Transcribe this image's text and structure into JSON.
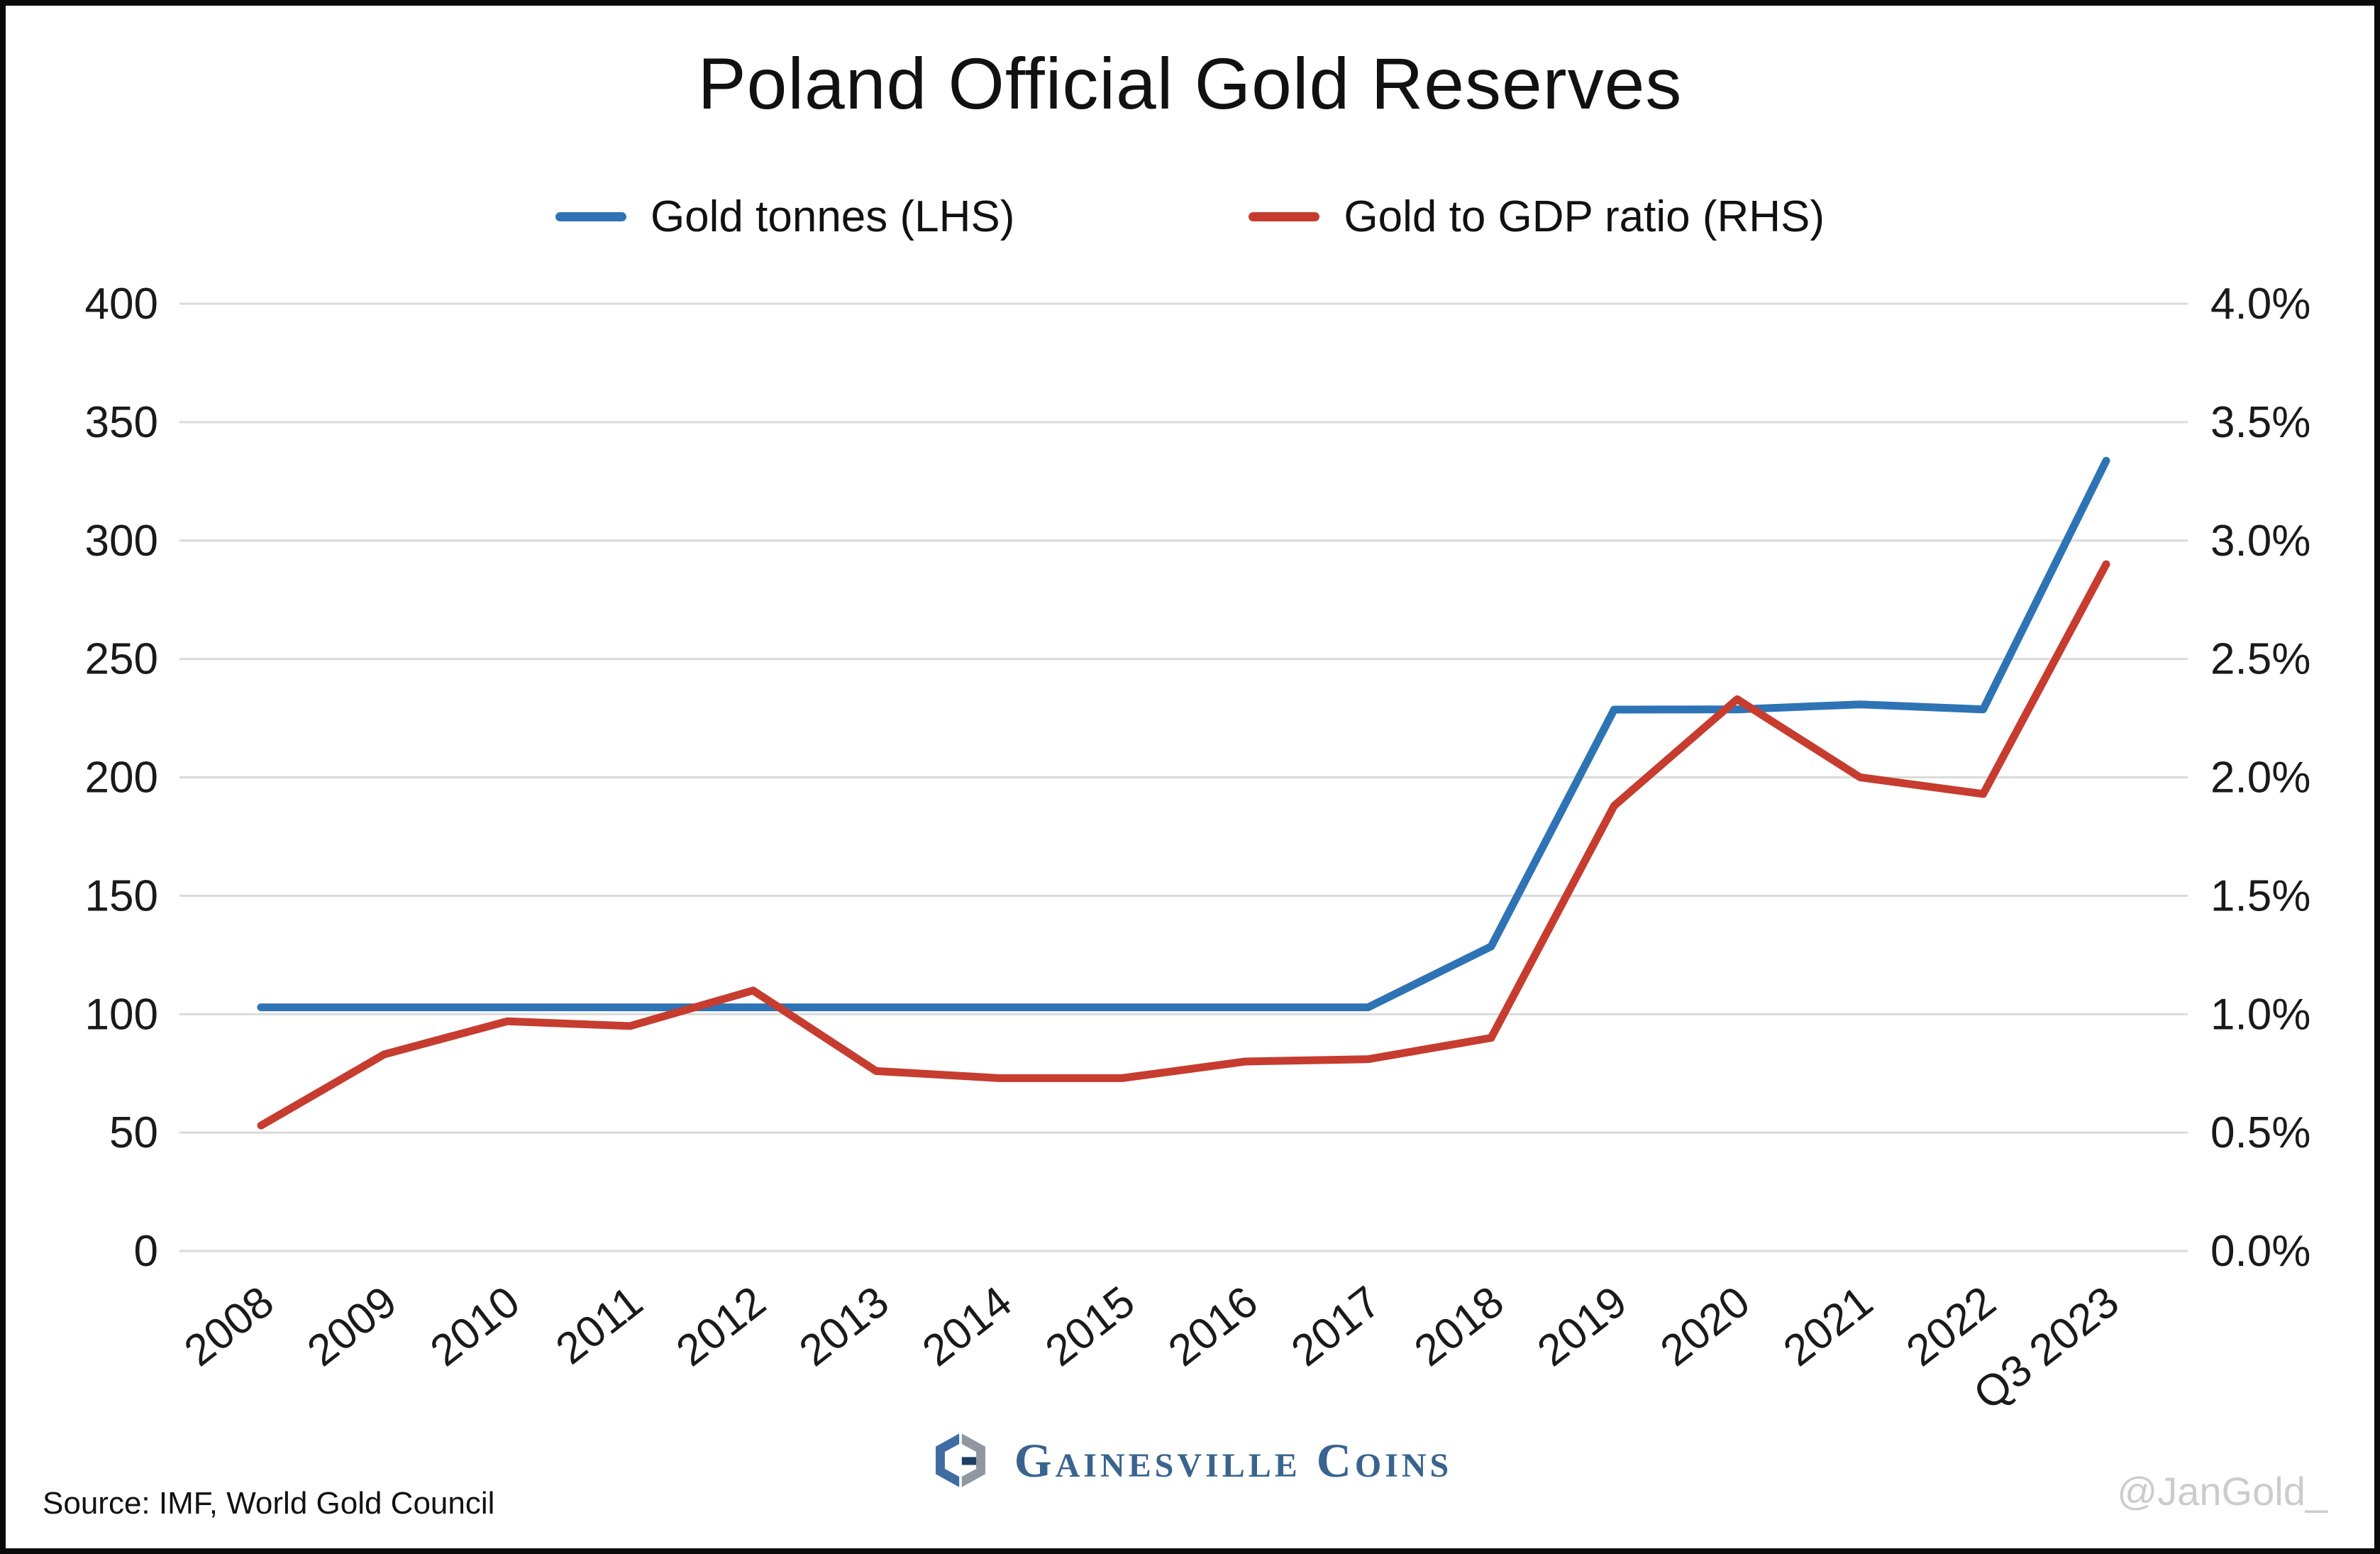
{
  "title": "Poland Official Gold Reserves",
  "legend": {
    "items": [
      {
        "label": "Gold tonnes (LHS)",
        "color": "#2E74B5"
      },
      {
        "label": "Gold to GDP ratio (RHS)",
        "color": "#C63C2F"
      }
    ]
  },
  "footer": {
    "source": "Source: IMF, World Gold Council",
    "logo_text": "Gainesville Coins",
    "watermark": "@JanGold_"
  },
  "chart_data": {
    "type": "line",
    "title": "Poland Official Gold Reserves",
    "categories": [
      "2008",
      "2009",
      "2010",
      "2011",
      "2012",
      "2013",
      "2014",
      "2015",
      "2016",
      "2017",
      "2018",
      "2019",
      "2020",
      "2021",
      "2022",
      "Q3 2023"
    ],
    "series": [
      {
        "name": "Gold tonnes (LHS)",
        "axis": "left",
        "color": "#2E74B5",
        "values": [
          102.9,
          102.9,
          102.9,
          102.9,
          102.9,
          102.9,
          102.9,
          102.9,
          102.9,
          102.9,
          128.6,
          228.6,
          228.7,
          230.8,
          228.7,
          333.7
        ]
      },
      {
        "name": "Gold to GDP ratio (RHS)",
        "axis": "right",
        "color": "#C63C2F",
        "values": [
          0.53,
          0.83,
          0.97,
          0.95,
          1.1,
          0.76,
          0.73,
          0.73,
          0.8,
          0.81,
          0.9,
          1.88,
          2.33,
          2.0,
          1.93,
          2.9
        ]
      }
    ],
    "left_axis": {
      "min": 0,
      "max": 400,
      "step": 50,
      "tick_values": [
        0,
        50,
        100,
        150,
        200,
        250,
        300,
        350,
        400
      ],
      "tick_labels": [
        "0",
        "50",
        "100",
        "150",
        "200",
        "250",
        "300",
        "350",
        "400"
      ]
    },
    "right_axis": {
      "min": 0,
      "max": 4,
      "step": 0.5,
      "tick_labels": [
        "0.0%",
        "0.5%",
        "1.0%",
        "1.5%",
        "2.0%",
        "2.5%",
        "3.0%",
        "3.5%",
        "4.0%"
      ]
    },
    "grid": true,
    "grid_color": "#DADADA",
    "background": "#FFFFFF",
    "legend_position": "top"
  }
}
